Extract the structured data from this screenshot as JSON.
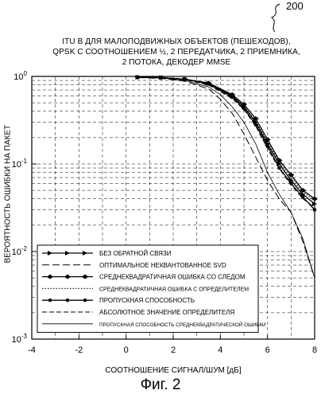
{
  "figure_ref": "200",
  "figure_caption": "Фиг. 2",
  "chart_data": {
    "type": "line",
    "title_lines": [
      "ITU В ДЛЯ МАЛОПОДВИЖНЫХ ОБЪЕКТОВ (ПЕШЕХОДОВ),",
      "QPSK С СООТНОШЕНИЕМ ½, 2 ПЕРЕДАТЧИКА, 2 ПРИЕМНИКА,",
      "2 ПОТОКА, ДЕКОДЕР MMSE"
    ],
    "xlabel": "СООТНОШЕНИЕ СИГНАЛ/ШУМ [дБ]",
    "ylabel": "ВЕРОЯТНОСТЬ ОШИБКИ НА ПАКЕТ",
    "xlim": [
      -4,
      8
    ],
    "ylim": [
      0.001,
      1
    ],
    "yscale": "log",
    "x_ticks": [
      -4,
      -2,
      0,
      2,
      4,
      6,
      8
    ],
    "y_ticks": [
      {
        "value": 1,
        "base": "10",
        "exp": "0"
      },
      {
        "value": 0.1,
        "base": "10",
        "exp": "-1"
      },
      {
        "value": 0.01,
        "base": "10",
        "exp": "-2"
      },
      {
        "value": 0.001,
        "base": "10",
        "exp": "-3"
      }
    ],
    "grid": true,
    "legend_position": "bottom-left",
    "series": [
      {
        "name": "БЕЗ ОБРАТНОЙ СВЯЗИ",
        "style": "arrow-solid",
        "x": [
          0.5,
          1.5,
          2.5,
          3.5,
          4.5,
          5.0,
          5.5,
          6.0,
          6.5,
          7.0,
          7.5,
          8.0
        ],
        "y": [
          0.98,
          0.97,
          0.93,
          0.83,
          0.6,
          0.45,
          0.3,
          0.17,
          0.1,
          0.065,
          0.045,
          0.035
        ]
      },
      {
        "name": "ОПТИМАЛЬНОЕ НЕКВАНТОВАННОЕ SVD",
        "style": "long-dash",
        "x": [
          0.5,
          1.5,
          2.5,
          3.5,
          4.0,
          4.5,
          5.0,
          5.5,
          6.0,
          6.5,
          7.0,
          7.5,
          8.0
        ],
        "y": [
          0.97,
          0.95,
          0.88,
          0.72,
          0.55,
          0.38,
          0.22,
          0.12,
          0.065,
          0.04,
          0.028,
          0.013,
          0.005
        ]
      },
      {
        "name": "СРЕДНЕКВАДРАТИЧНАЯ ОШИБКА СО СЛЕДОМ",
        "style": "double-arrow",
        "x": [
          0.5,
          1.5,
          2.5,
          3.5,
          4.5,
          5.0,
          5.5,
          6.0,
          6.5,
          7.0,
          7.5,
          8.0
        ],
        "y": [
          0.98,
          0.97,
          0.93,
          0.84,
          0.62,
          0.48,
          0.33,
          0.19,
          0.11,
          0.075,
          0.05,
          0.04
        ]
      },
      {
        "name": "СРЕДНЕКВАДРАТИЧНАЯ ОШИБКА С ОПРЕДЕЛИТЕЛЕМ",
        "style": "dotted",
        "x": [
          0.5,
          1.5,
          2.5,
          3.5,
          4.5,
          5.0,
          5.5,
          6.0,
          6.5,
          7.0,
          7.5,
          8.0
        ],
        "y": [
          0.98,
          0.97,
          0.93,
          0.83,
          0.61,
          0.46,
          0.31,
          0.18,
          0.105,
          0.07,
          0.048,
          0.038
        ]
      },
      {
        "name": "ПРОПУСКНАЯ СПОСОБНОСТЬ",
        "style": "dot-solid",
        "x": [
          0.5,
          1.5,
          2.5,
          3.5,
          4.5,
          5.0,
          5.5,
          6.0,
          6.5,
          7.0,
          7.5,
          8.0
        ],
        "y": [
          0.98,
          0.97,
          0.93,
          0.82,
          0.58,
          0.43,
          0.28,
          0.16,
          0.09,
          0.06,
          0.042,
          0.03
        ]
      },
      {
        "name": "АБСОЛЮТНОЕ ЗНАЧЕНИЕ ОПРЕДЕЛИТЕЛЯ",
        "style": "medium-dash",
        "x": [
          0.5,
          1.5,
          2.5,
          3.5,
          4.5,
          5.0,
          5.5,
          6.0,
          6.5,
          7.0,
          7.5,
          8.0
        ],
        "y": [
          0.98,
          0.97,
          0.92,
          0.8,
          0.56,
          0.42,
          0.27,
          0.15,
          0.088,
          0.058,
          0.04,
          0.032
        ]
      },
      {
        "name": "ПРОПУСКНАЯ СПОСОБНОСТЬ СРЕДНЕКВАДРАТИЧЕСКОЙ ОШИБКИ",
        "style": "thin-solid",
        "x": [
          0.5,
          1.5,
          2.5,
          3.5,
          4.0,
          4.5,
          5.0,
          5.5,
          6.0,
          6.5,
          7.0,
          7.5,
          8.0
        ],
        "y": [
          0.97,
          0.96,
          0.9,
          0.76,
          0.62,
          0.45,
          0.3,
          0.17,
          0.08,
          0.045,
          0.028,
          0.014,
          0.005
        ]
      }
    ]
  }
}
